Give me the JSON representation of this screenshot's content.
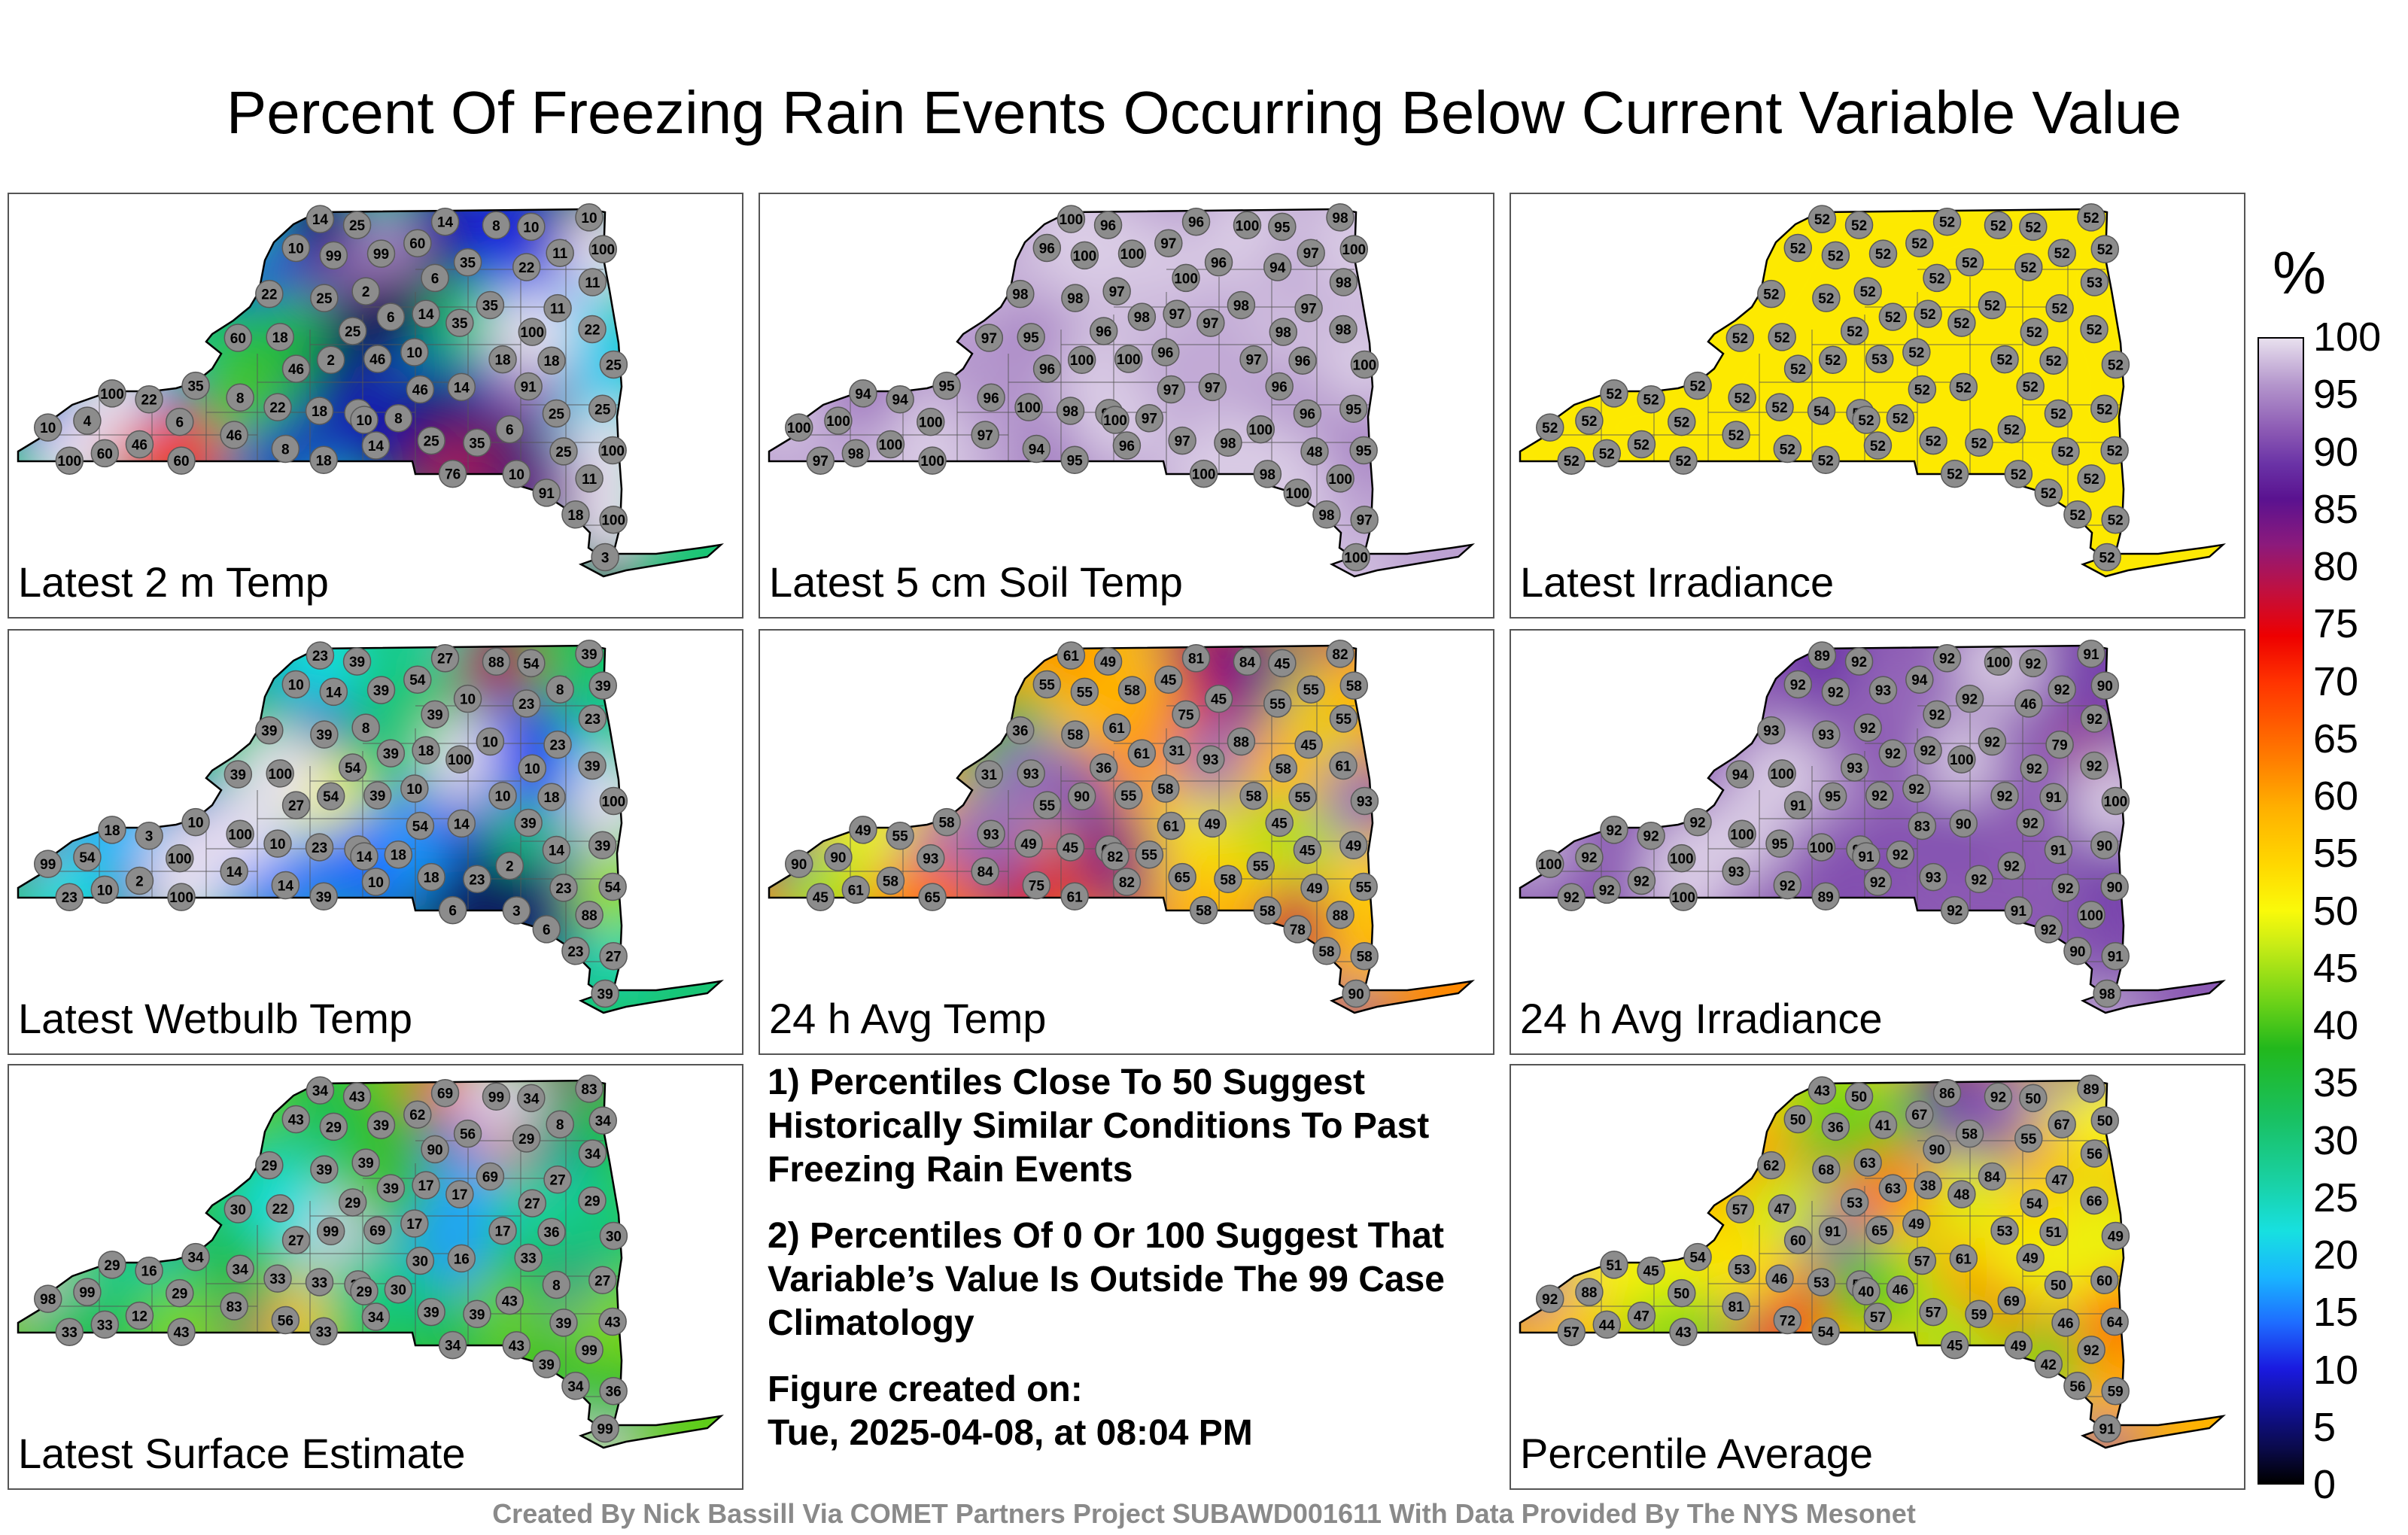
{
  "title": "Percent Of Freezing Rain Events Occurring Below Current Variable Value",
  "colorbar": {
    "unit": "%",
    "ticks": [
      "100",
      "95",
      "90",
      "85",
      "80",
      "75",
      "70",
      "65",
      "60",
      "55",
      "50",
      "45",
      "40",
      "35",
      "30",
      "25",
      "20",
      "15",
      "10",
      "5",
      "0"
    ]
  },
  "panels": [
    {
      "label": "Latest 2 m Temp",
      "stations": [
        18,
        46,
        60,
        25,
        11,
        22,
        14,
        25,
        60,
        35,
        10,
        25,
        22,
        46,
        35,
        18,
        25,
        11,
        22,
        35,
        46,
        25,
        18,
        18,
        25,
        10,
        22,
        46,
        25,
        11,
        22,
        10,
        14,
        18,
        8,
        10,
        6,
        2,
        14,
        8,
        35,
        46,
        14,
        10,
        6,
        4,
        3,
        2,
        8,
        11,
        10,
        6,
        25,
        35,
        18,
        8,
        60,
        91,
        76,
        99,
        60,
        99,
        91,
        100,
        100,
        100,
        100,
        100,
        100,
        8,
        6,
        14,
        10
      ],
      "colors": [
        25,
        30,
        20,
        28,
        25,
        32,
        22,
        28,
        35,
        30,
        20,
        26,
        24,
        30,
        28,
        24,
        25,
        20,
        22,
        28,
        30,
        26,
        22,
        20,
        22,
        15,
        18,
        25,
        22,
        12,
        10,
        8,
        6,
        10,
        6,
        4,
        3,
        2,
        4,
        8,
        14,
        10,
        6,
        4,
        3,
        2,
        2,
        4,
        10,
        12,
        10,
        8,
        20,
        30,
        35,
        40,
        70,
        85,
        80,
        90,
        75,
        95,
        92,
        100,
        100,
        100,
        100,
        100,
        100,
        4,
        3,
        5,
        8
      ]
    },
    {
      "label": "Latest 5 cm Soil Temp",
      "stations": [
        98,
        100,
        97,
        98,
        98,
        100,
        97,
        96,
        97,
        98,
        96,
        97,
        98,
        96,
        96,
        98,
        96,
        97,
        94,
        95,
        97,
        48,
        96,
        95,
        95,
        96,
        94,
        100,
        96,
        97,
        98,
        95,
        97,
        97,
        97,
        98,
        100,
        97,
        96,
        94,
        98,
        97,
        96,
        98,
        100,
        100,
        100,
        100,
        100,
        100,
        100,
        100,
        100,
        97,
        95,
        96,
        100,
        100,
        100,
        100,
        98,
        100,
        96,
        97,
        94,
        95,
        100,
        97,
        98,
        97,
        98,
        100,
        100
      ],
      "colors": [
        99,
        99,
        97,
        98,
        98,
        99,
        97,
        96,
        97,
        98,
        96,
        97,
        98,
        96,
        96,
        98,
        96,
        97,
        94,
        95,
        97,
        48,
        96,
        95,
        95,
        96,
        94,
        99,
        96,
        97,
        98,
        95,
        97,
        97,
        97,
        98,
        99,
        97,
        96,
        94,
        98,
        97,
        96,
        98,
        99,
        99,
        99,
        99,
        99,
        99,
        99,
        99,
        99,
        97,
        95,
        96,
        99,
        99,
        99,
        99,
        98,
        99,
        96,
        97,
        94,
        95,
        99,
        97,
        98,
        97,
        98,
        99,
        99
      ]
    },
    {
      "label": "Latest Irradiance",
      "stations": [
        54,
        53,
        52,
        52,
        53,
        52,
        52,
        52,
        52,
        52,
        52,
        52,
        52,
        52,
        52,
        52,
        52,
        52,
        52,
        52,
        52,
        52,
        52,
        52,
        52,
        52,
        52,
        52,
        52,
        52,
        52,
        52,
        52,
        52,
        52,
        52,
        52,
        52,
        52,
        52,
        52,
        52,
        52,
        52,
        52,
        52,
        52,
        52,
        52,
        52,
        52,
        52,
        52,
        52,
        52,
        52,
        52,
        52,
        52,
        52,
        52,
        52,
        52,
        52,
        52,
        52,
        52,
        52,
        52,
        52,
        52,
        52,
        52
      ],
      "colors": [
        52,
        52,
        52,
        52,
        52,
        52,
        52,
        52,
        52,
        52,
        52,
        52,
        52,
        52,
        52,
        52,
        52,
        52,
        52,
        52,
        52,
        52,
        52,
        52,
        52,
        52,
        52,
        52,
        52,
        52,
        52,
        52,
        52,
        52,
        52,
        52,
        52,
        52,
        52,
        52,
        52,
        52,
        52,
        52,
        52,
        52,
        52,
        52,
        52,
        52,
        52,
        52,
        52,
        52,
        52,
        52,
        52,
        52,
        52,
        52,
        52,
        52,
        52,
        52,
        52,
        52,
        52,
        52,
        52,
        52,
        52,
        52,
        52
      ]
    },
    {
      "label": "Latest Wetbulb Temp",
      "stations": [
        23,
        39,
        54,
        39,
        23,
        10,
        18,
        54,
        39,
        23,
        10,
        18,
        39,
        27,
        10,
        23,
        39,
        23,
        23,
        10,
        54,
        23,
        18,
        39,
        39,
        10,
        3,
        2,
        14,
        8,
        39,
        54,
        14,
        10,
        6,
        3,
        2,
        8,
        10,
        14,
        10,
        14,
        27,
        39,
        39,
        54,
        39,
        54,
        88,
        88,
        99,
        100,
        100,
        100,
        100,
        100,
        100,
        6,
        6,
        14,
        10,
        39,
        39,
        27,
        18,
        54,
        39,
        23,
        10,
        18,
        39,
        23,
        14
      ],
      "colors": [
        25,
        30,
        40,
        30,
        22,
        12,
        18,
        40,
        30,
        22,
        12,
        18,
        30,
        25,
        12,
        22,
        30,
        22,
        22,
        12,
        40,
        22,
        18,
        30,
        30,
        12,
        4,
        3,
        10,
        8,
        30,
        40,
        10,
        10,
        6,
        3,
        3,
        8,
        10,
        14,
        12,
        14,
        25,
        35,
        35,
        45,
        35,
        50,
        80,
        85,
        92,
        100,
        100,
        100,
        100,
        100,
        100,
        5,
        4,
        10,
        8,
        30,
        30,
        25,
        18,
        45,
        30,
        22,
        12,
        18,
        30,
        22,
        14
      ]
    },
    {
      "label": "24 h Avg Temp",
      "stations": [
        45,
        55,
        45,
        58,
        55,
        49,
        31,
        36,
        31,
        58,
        55,
        65,
        61,
        55,
        45,
        58,
        49,
        45,
        55,
        58,
        61,
        49,
        55,
        61,
        49,
        58,
        55,
        58,
        45,
        55,
        36,
        45,
        49,
        58,
        61,
        58,
        55,
        61,
        82,
        75,
        88,
        84,
        81,
        82,
        75,
        90,
        90,
        90,
        84,
        88,
        90,
        93,
        93,
        93,
        93,
        93,
        65,
        78,
        58,
        55,
        61,
        58,
        45,
        58,
        49,
        55,
        58,
        45,
        58,
        55,
        61,
        61,
        82
      ],
      "colors": [
        45,
        55,
        45,
        58,
        55,
        49,
        31,
        36,
        31,
        58,
        55,
        65,
        61,
        55,
        45,
        58,
        49,
        45,
        55,
        58,
        61,
        49,
        55,
        61,
        49,
        58,
        55,
        58,
        45,
        55,
        36,
        45,
        49,
        58,
        61,
        58,
        55,
        61,
        82,
        75,
        88,
        84,
        81,
        82,
        75,
        90,
        90,
        90,
        84,
        88,
        90,
        93,
        93,
        93,
        93,
        93,
        65,
        78,
        58,
        55,
        61,
        58,
        45,
        58,
        49,
        55,
        58,
        45,
        58,
        55,
        61,
        61,
        82
      ]
    },
    {
      "label": "24 h Avg Irradiance",
      "stations": [
        100,
        92,
        94,
        93,
        92,
        95,
        92,
        93,
        94,
        92,
        92,
        93,
        92,
        91,
        92,
        90,
        92,
        79,
        46,
        92,
        83,
        92,
        91,
        89,
        90,
        92,
        92,
        92,
        91,
        92,
        93,
        92,
        90,
        92,
        92,
        91,
        92,
        92,
        92,
        92,
        92,
        93,
        92,
        91,
        92,
        92,
        98,
        95,
        100,
        100,
        100,
        100,
        100,
        100,
        100,
        100,
        100,
        92,
        92,
        92,
        92,
        93,
        92,
        91,
        92,
        90,
        90,
        92,
        92,
        92,
        92,
        89,
        91
      ],
      "colors": [
        99,
        92,
        94,
        93,
        92,
        95,
        92,
        93,
        94,
        92,
        92,
        93,
        92,
        91,
        92,
        90,
        92,
        79,
        46,
        92,
        83,
        92,
        91,
        89,
        90,
        92,
        92,
        92,
        91,
        92,
        93,
        92,
        90,
        92,
        92,
        91,
        92,
        92,
        92,
        92,
        92,
        93,
        92,
        91,
        92,
        92,
        98,
        95,
        99,
        99,
        99,
        99,
        99,
        99,
        99,
        99,
        99,
        92,
        92,
        92,
        92,
        93,
        92,
        91,
        92,
        90,
        90,
        92,
        92,
        92,
        92,
        89,
        91
      ]
    },
    {
      "label": "Latest Surface Estimate",
      "stations": [
        33,
        69,
        62,
        39,
        34,
        33,
        17,
        29,
        30,
        39,
        43,
        39,
        29,
        27,
        56,
        34,
        43,
        27,
        29,
        34,
        30,
        39,
        36,
        33,
        27,
        17,
        16,
        12,
        8,
        8,
        29,
        34,
        16,
        17,
        27,
        43,
        43,
        39,
        34,
        56,
        69,
        83,
        69,
        83,
        90,
        99,
        99,
        99,
        99,
        99,
        98,
        29,
        30,
        17,
        22,
        34,
        43,
        39,
        34,
        29,
        33,
        39,
        33,
        36,
        29,
        43,
        34,
        33,
        27,
        30,
        39,
        34,
        29
      ],
      "colors": [
        33,
        69,
        62,
        39,
        34,
        33,
        17,
        29,
        30,
        39,
        43,
        39,
        29,
        27,
        56,
        34,
        43,
        27,
        29,
        34,
        30,
        39,
        36,
        33,
        27,
        17,
        16,
        12,
        8,
        8,
        29,
        34,
        16,
        17,
        27,
        43,
        43,
        39,
        34,
        56,
        69,
        83,
        69,
        83,
        90,
        99,
        99,
        99,
        99,
        99,
        98,
        29,
        30,
        17,
        22,
        34,
        43,
        39,
        34,
        29,
        33,
        39,
        33,
        36,
        29,
        43,
        34,
        33,
        27,
        30,
        39,
        34,
        29
      ]
    },
    {
      "label": "Percentile Average",
      "stations": [
        53,
        65,
        67,
        68,
        56,
        46,
        38,
        53,
        57,
        59,
        50,
        57,
        66,
        60,
        58,
        56,
        50,
        47,
        55,
        54,
        57,
        46,
        51,
        54,
        60,
        49,
        45,
        47,
        50,
        67,
        62,
        50,
        61,
        53,
        54,
        49,
        69,
        63,
        57,
        72,
        84,
        81,
        86,
        89,
        90,
        88,
        91,
        91,
        92,
        92,
        92,
        50,
        49,
        48,
        47,
        53,
        43,
        42,
        45,
        36,
        44,
        41,
        49,
        59,
        51,
        64,
        50,
        57,
        54,
        46,
        63,
        43,
        40
      ],
      "colors": [
        53,
        65,
        67,
        68,
        56,
        46,
        38,
        53,
        57,
        59,
        50,
        57,
        66,
        60,
        58,
        56,
        50,
        47,
        55,
        54,
        57,
        46,
        51,
        54,
        60,
        49,
        45,
        47,
        50,
        67,
        62,
        50,
        61,
        53,
        54,
        49,
        69,
        63,
        57,
        72,
        84,
        81,
        86,
        89,
        90,
        88,
        91,
        91,
        92,
        92,
        92,
        50,
        49,
        48,
        47,
        53,
        43,
        42,
        45,
        36,
        44,
        41,
        49,
        59,
        51,
        64,
        50,
        57,
        54,
        46,
        63,
        43,
        40
      ]
    }
  ],
  "notes": [
    "1) Percentiles Close To 50 Suggest Historically Similar Conditions To Past Freezing Rain Events",
    "2) Percentiles Of 0 Or 100 Suggest That Variable’s Value Is Outside The 99 Case Climatology",
    "Figure created on:",
    "Tue, 2025-04-08, at 08:04 PM"
  ],
  "footer": "Created By Nick Bassill Via COMET Partners Project SUBAWD001611 With Data Provided By The NYS Mesonet"
}
